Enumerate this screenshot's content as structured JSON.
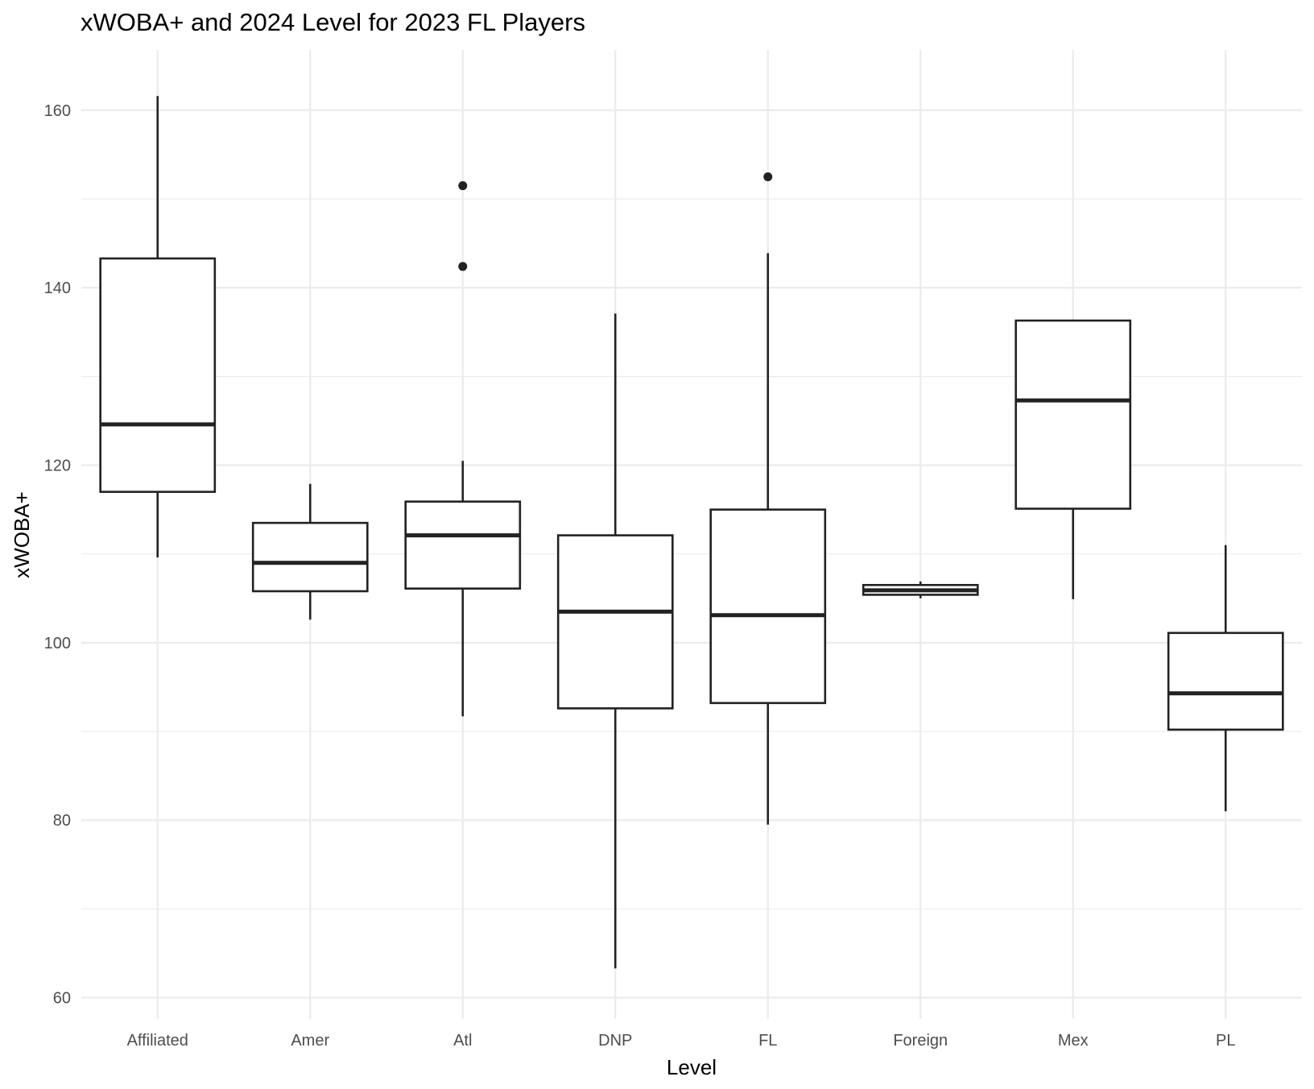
{
  "chart_data": {
    "type": "boxplot",
    "title": "xWOBA+ and 2024 Level for 2023 FL Players",
    "xlabel": "Level",
    "ylabel": "xWOBA+",
    "ylim": [
      57.6,
      166.8
    ],
    "y_ticks": [
      60,
      80,
      100,
      120,
      140,
      160
    ],
    "grid": true,
    "categories": [
      "Affiliated",
      "Amer",
      "Atl",
      "DNP",
      "FL",
      "Foreign",
      "Mex",
      "PL"
    ],
    "boxes": [
      {
        "category": "Affiliated",
        "min": 109.6,
        "q1": 117.0,
        "median": 124.6,
        "q3": 143.3,
        "max": 161.6,
        "outliers": []
      },
      {
        "category": "Amer",
        "min": 102.6,
        "q1": 105.8,
        "median": 109.0,
        "q3": 113.5,
        "max": 117.9,
        "outliers": []
      },
      {
        "category": "Atl",
        "min": 91.7,
        "q1": 106.1,
        "median": 112.1,
        "q3": 115.9,
        "max": 120.5,
        "outliers": [
          142.4,
          151.5
        ]
      },
      {
        "category": "DNP",
        "min": 63.3,
        "q1": 92.6,
        "median": 103.5,
        "q3": 112.1,
        "max": 137.1,
        "outliers": []
      },
      {
        "category": "FL",
        "min": 79.5,
        "q1": 93.2,
        "median": 103.1,
        "q3": 115.0,
        "max": 143.9,
        "outliers": [
          152.5
        ]
      },
      {
        "category": "Foreign",
        "min": 105.0,
        "q1": 105.4,
        "median": 105.9,
        "q3": 106.5,
        "max": 106.9,
        "outliers": []
      },
      {
        "category": "Mex",
        "min": 104.9,
        "q1": 115.1,
        "median": 127.3,
        "q3": 136.3,
        "max": 136.4,
        "outliers": []
      },
      {
        "category": "PL",
        "min": 81.0,
        "q1": 90.2,
        "median": 94.3,
        "q3": 101.1,
        "max": 111.0,
        "outliers": []
      }
    ]
  }
}
